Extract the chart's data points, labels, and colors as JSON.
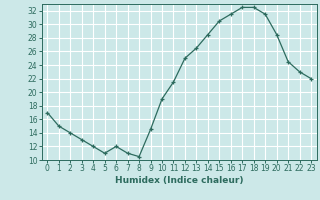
{
  "x": [
    0,
    1,
    2,
    3,
    4,
    5,
    6,
    7,
    8,
    9,
    10,
    11,
    12,
    13,
    14,
    15,
    16,
    17,
    18,
    19,
    20,
    21,
    22,
    23
  ],
  "y": [
    17,
    15,
    14,
    13,
    12,
    11,
    12,
    11,
    10.5,
    14.5,
    19,
    21.5,
    25,
    26.5,
    28.5,
    30.5,
    31.5,
    32.5,
    32.5,
    31.5,
    28.5,
    24.5,
    23,
    22
  ],
  "xlabel": "Humidex (Indice chaleur)",
  "ylim": [
    10,
    33
  ],
  "xlim": [
    -0.5,
    23.5
  ],
  "yticks": [
    10,
    12,
    14,
    16,
    18,
    20,
    22,
    24,
    26,
    28,
    30,
    32
  ],
  "xticks": [
    0,
    1,
    2,
    3,
    4,
    5,
    6,
    7,
    8,
    9,
    10,
    11,
    12,
    13,
    14,
    15,
    16,
    17,
    18,
    19,
    20,
    21,
    22,
    23
  ],
  "line_color": "#2d6b5e",
  "marker": "+",
  "bg_color": "#cce8e8",
  "grid_color": "#ffffff",
  "tick_fontsize": 5.5,
  "label_fontsize": 6.5
}
